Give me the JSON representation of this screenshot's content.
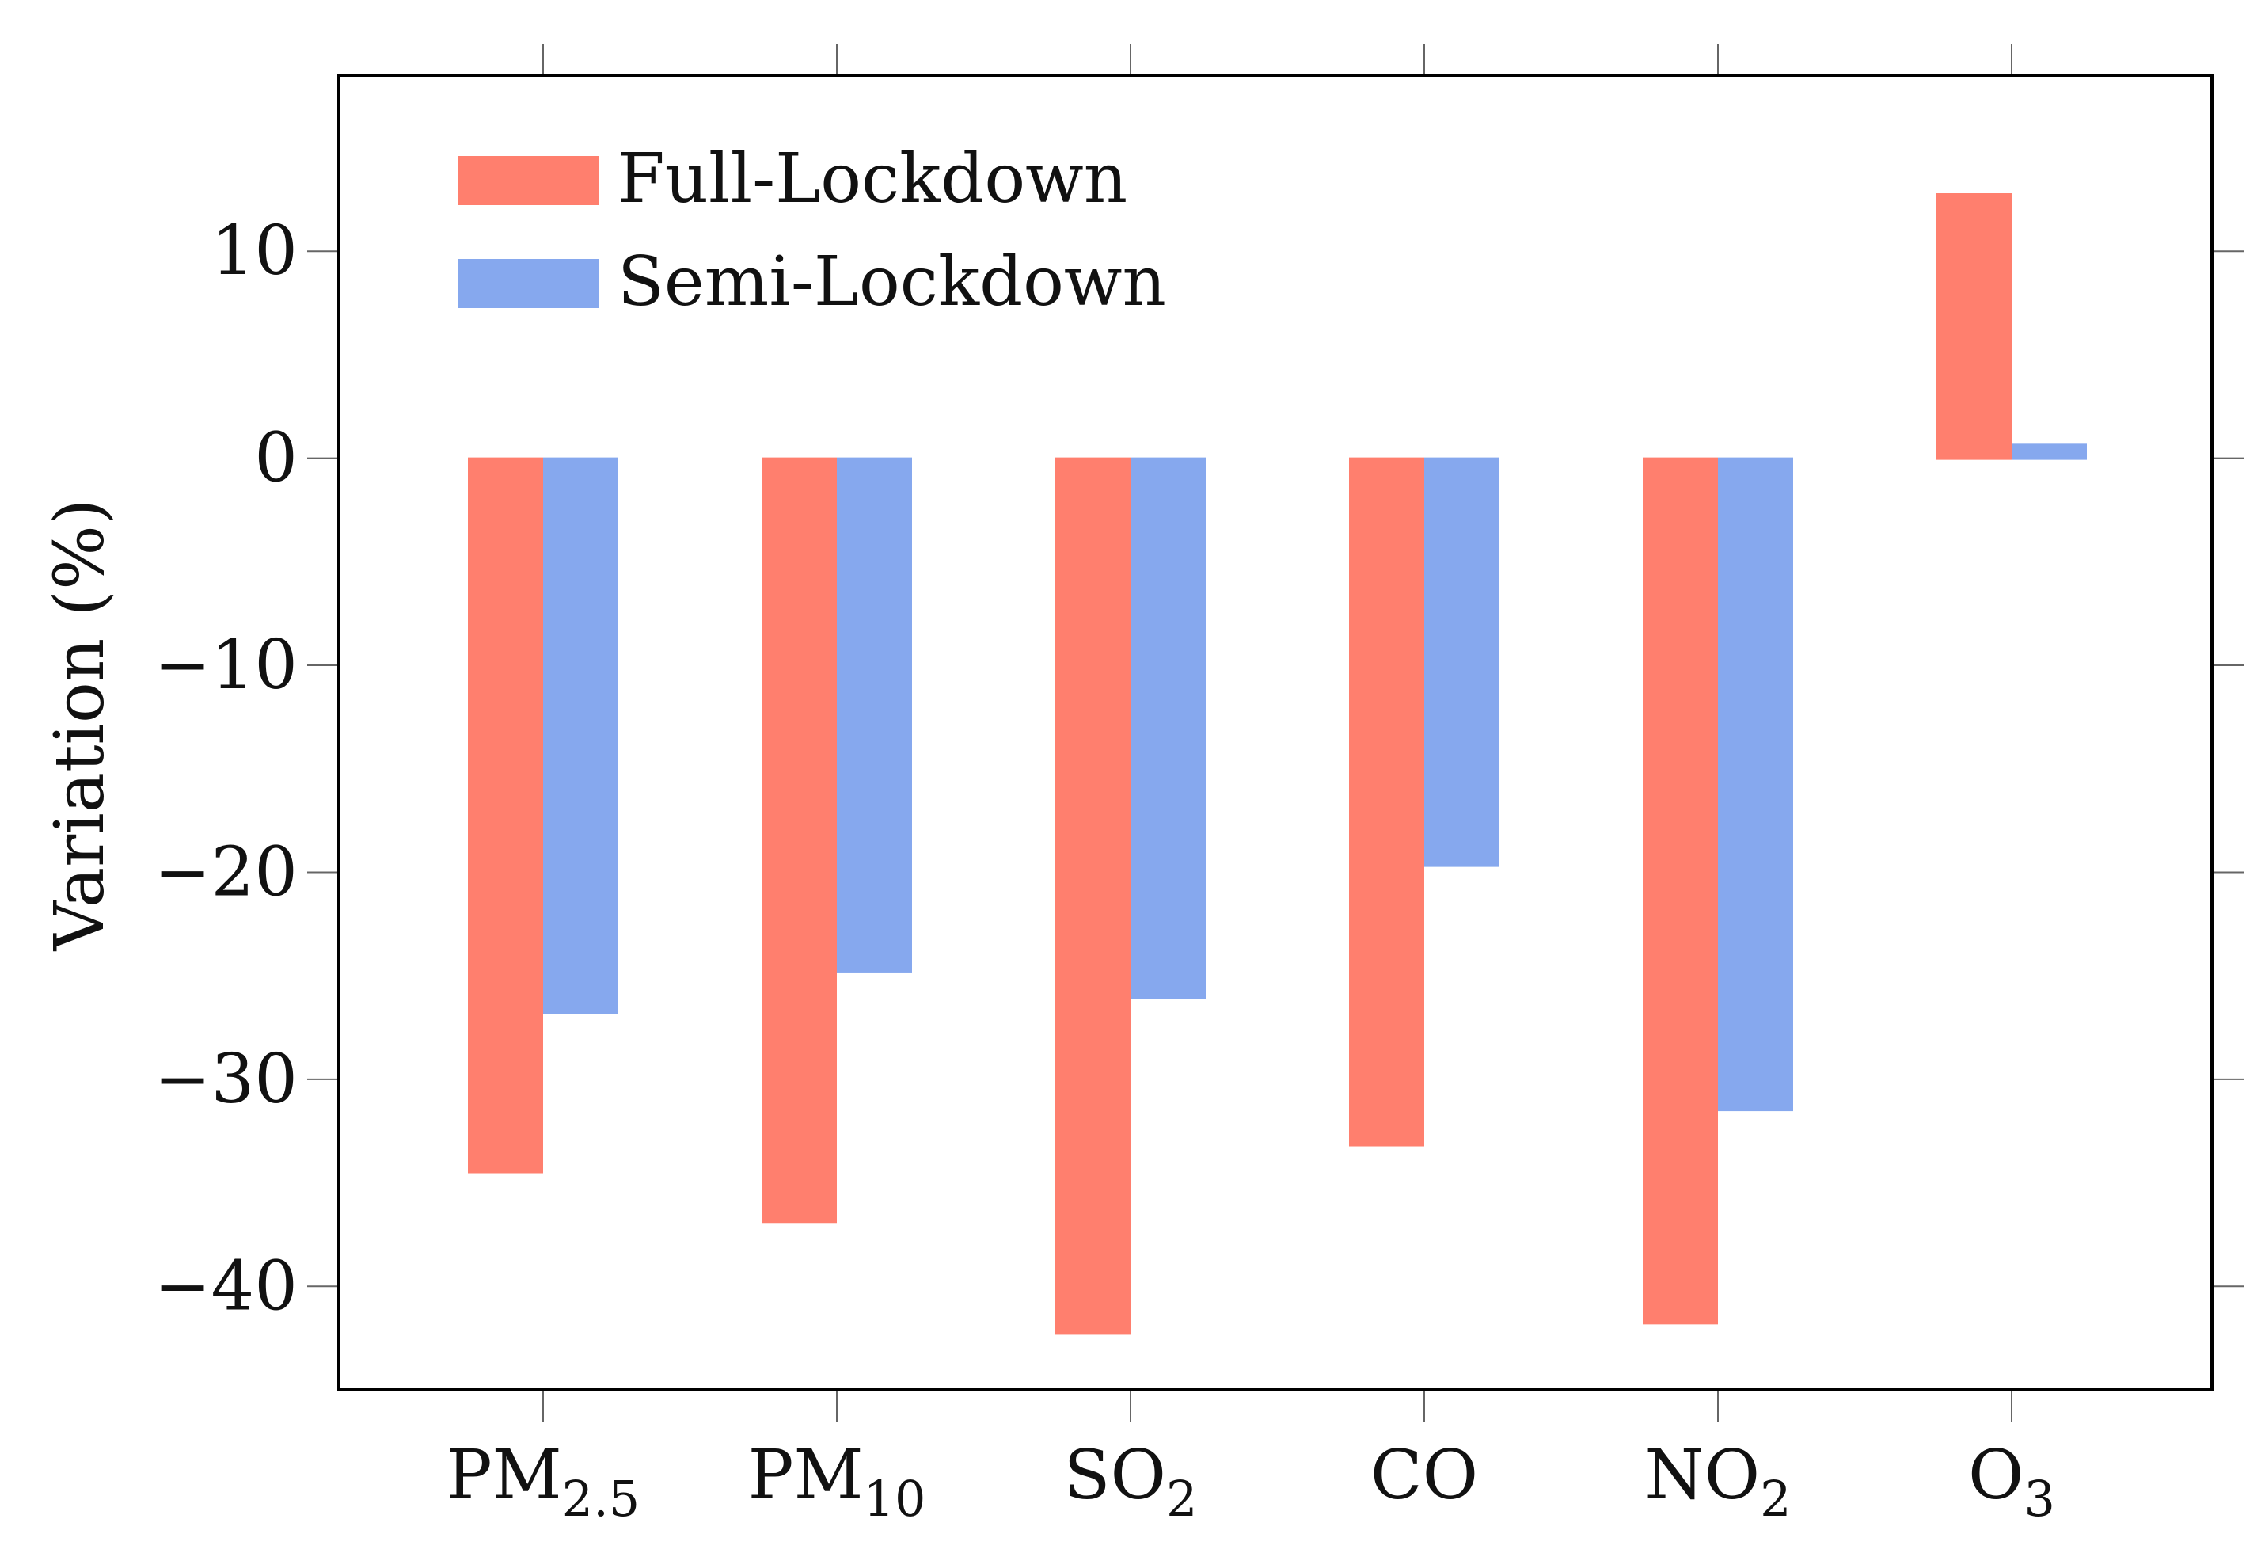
{
  "chart_data": {
    "type": "bar",
    "ylabel": "Variation (%)",
    "xlabel": "",
    "ylim": [
      -45,
      18.5
    ],
    "yticks": [
      10,
      0,
      -10,
      -20,
      -30,
      -40
    ],
    "ytick_labels": [
      "10",
      "0",
      "−10",
      "−20",
      "−30",
      "−40"
    ],
    "categories": [
      {
        "base": "PM",
        "sub": "2.5"
      },
      {
        "base": "PM",
        "sub": "10"
      },
      {
        "base": "SO",
        "sub": "2"
      },
      {
        "base": "CO",
        "sub": ""
      },
      {
        "base": "NO",
        "sub": "2"
      },
      {
        "base": "O",
        "sub": "3"
      }
    ],
    "series": [
      {
        "name": "Full-Lockdown",
        "color": "#ff7f6e",
        "values": [
          -34.5,
          -36.9,
          -42.3,
          -33.2,
          -41.8,
          12.8
        ]
      },
      {
        "name": "Semi-Lockdown",
        "color": "#86a8ee",
        "values": [
          -26.8,
          -24.8,
          -26.1,
          -19.7,
          -31.5,
          0.7
        ]
      }
    ],
    "legend": "top-left",
    "grid": false
  }
}
